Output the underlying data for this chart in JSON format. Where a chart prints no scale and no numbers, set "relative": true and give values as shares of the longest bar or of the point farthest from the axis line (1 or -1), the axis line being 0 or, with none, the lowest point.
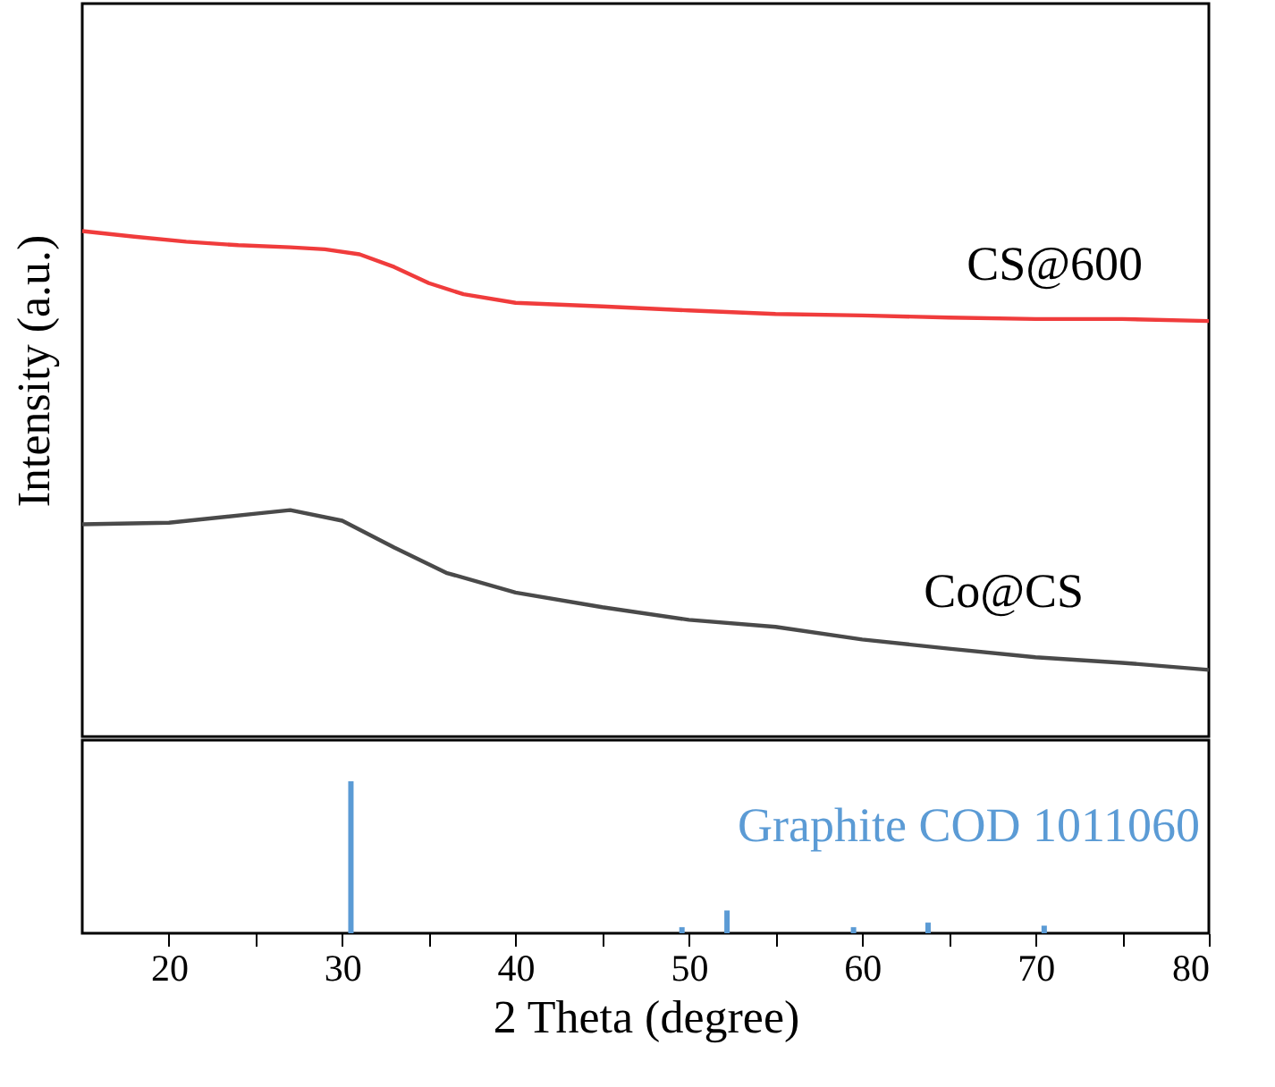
{
  "chart_data": [
    {
      "type": "line",
      "ylabel": "Intensity (a.u.)",
      "xlim": [
        15,
        80
      ],
      "relative": true,
      "tick_labels": false,
      "grid": false,
      "legend": false,
      "series": [
        {
          "name": "CS@600",
          "color": "#f03c3c",
          "x": [
            15,
            18,
            21,
            24,
            27,
            29,
            31,
            33,
            35,
            37,
            40,
            45,
            50,
            55,
            60,
            65,
            70,
            75,
            80
          ],
          "values": [
            1.0,
            0.989,
            0.979,
            0.972,
            0.968,
            0.964,
            0.954,
            0.929,
            0.897,
            0.875,
            0.858,
            0.851,
            0.843,
            0.836,
            0.833,
            0.829,
            0.826,
            0.826,
            0.822
          ]
        },
        {
          "name": "Co@CS",
          "color": "#4a4a4a",
          "x": [
            15,
            20,
            25,
            27,
            30,
            33,
            36,
            40,
            45,
            50,
            55,
            60,
            65,
            70,
            75,
            80
          ],
          "values": [
            0.42,
            0.423,
            0.441,
            0.448,
            0.427,
            0.374,
            0.324,
            0.285,
            0.256,
            0.231,
            0.217,
            0.192,
            0.174,
            0.157,
            0.146,
            0.132
          ]
        }
      ]
    },
    {
      "type": "bar",
      "xlabel": "2 Theta (degree)",
      "xlim": [
        15,
        80
      ],
      "relative": true,
      "tick_labels": "x",
      "grid": false,
      "legend": false,
      "xticks": [
        20,
        {
          "value": 25,
          "label": null
        },
        30,
        {
          "value": 35,
          "label": null
        },
        40,
        {
          "value": 45,
          "label": null
        },
        50,
        {
          "value": 55,
          "label": null
        },
        60,
        {
          "value": 65,
          "label": null
        },
        70,
        {
          "value": 75,
          "label": null
        },
        80
      ],
      "series": [
        {
          "name": "Graphite COD 1011060",
          "color": "#5b9bd5",
          "x": [
            30.5,
            49.6,
            52.2,
            59.5,
            63.8,
            70.5
          ],
          "values": [
            1,
            0.04,
            0.15,
            0.04,
            0.07,
            0.05
          ]
        }
      ]
    }
  ]
}
